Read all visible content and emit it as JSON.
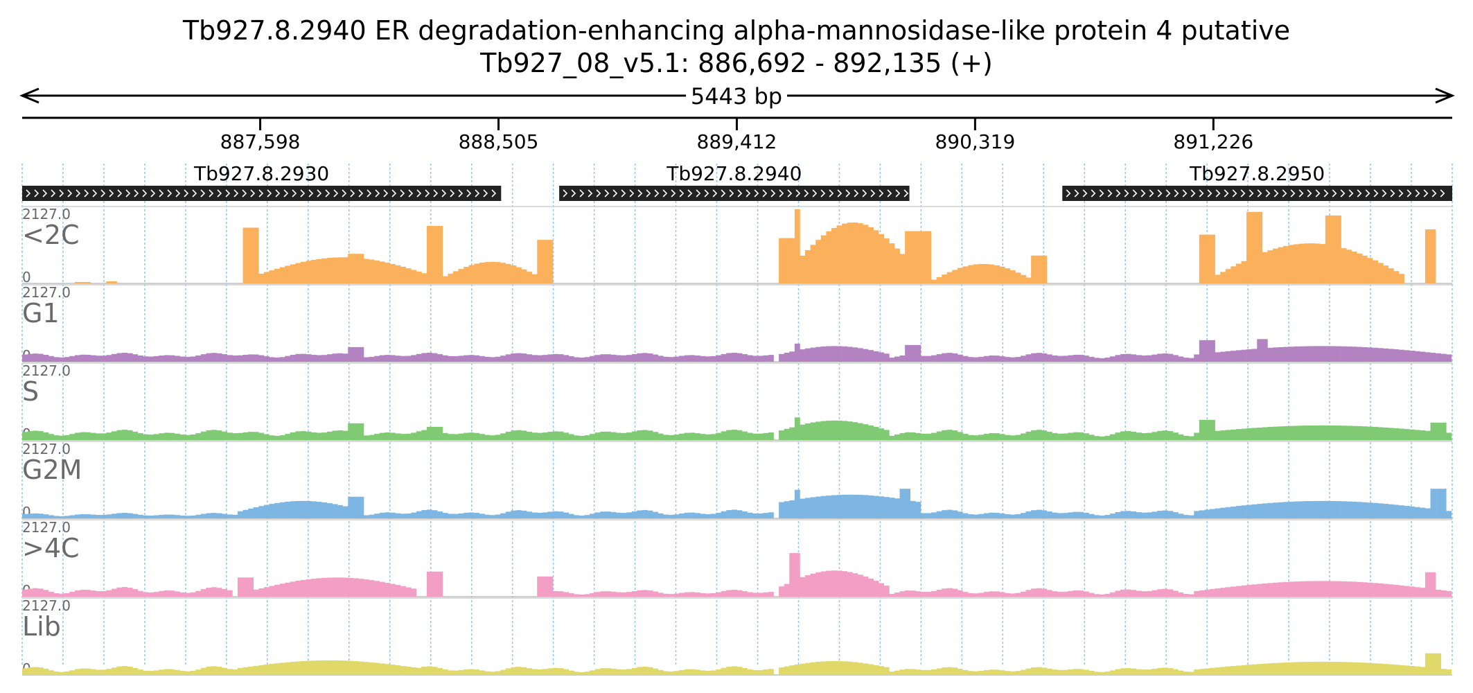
{
  "chart_data": {
    "type": "bar",
    "title": "Tb927.8.2940  ER degradation-enhancing alpha-mannosidase-like protein 4  putative",
    "subtitle": "Tb927_08_v5.1: 886,692 - 892,135 (+)",
    "region": {
      "chrom": "Tb927_08_v5.1",
      "start": 886692,
      "end": 892135,
      "strand": "+",
      "length_label": "5443 bp"
    },
    "axis_ticks": [
      {
        "value": 887598,
        "label": "887,598"
      },
      {
        "value": 888505,
        "label": "888,505"
      },
      {
        "value": 889412,
        "label": "889,412"
      },
      {
        "value": 890319,
        "label": "890,319"
      },
      {
        "value": 891226,
        "label": "891,226"
      }
    ],
    "genes": [
      {
        "name": "Tb927.8.2930",
        "start": 886692,
        "end": 888515,
        "strand": "+"
      },
      {
        "name": "Tb927.8.2940",
        "start": 888736,
        "end": 890069,
        "strand": "+"
      },
      {
        "name": "Tb927.8.2950",
        "start": 890651,
        "end": 892135,
        "strand": "+"
      }
    ],
    "ylim": [
      0,
      2127.0
    ],
    "ymax_label": "2127.0",
    "ymin_label": "0",
    "bin_size_bp": 20,
    "series": [
      {
        "name": "<2C",
        "color": "#fbb15c",
        "segments": [
          {
            "start": 886900,
            "end": 886960,
            "shape": "flat",
            "base": 40
          },
          {
            "start": 887020,
            "end": 887060,
            "shape": "flat",
            "base": 60
          },
          {
            "start": 887530,
            "end": 887590,
            "shape": "flat",
            "base": 1600
          },
          {
            "start": 887590,
            "end": 888240,
            "shape": "arch",
            "base": 250,
            "peak": 750
          },
          {
            "start": 887940,
            "end": 887990,
            "shape": "flat",
            "base": 850
          },
          {
            "start": 888240,
            "end": 888300,
            "shape": "flat",
            "base": 1650
          },
          {
            "start": 888300,
            "end": 888660,
            "shape": "arch",
            "base": 200,
            "peak": 620
          },
          {
            "start": 888660,
            "end": 888720,
            "shape": "flat",
            "base": 1250
          },
          {
            "start": 889580,
            "end": 889640,
            "shape": "flat",
            "base": 1300
          },
          {
            "start": 889630,
            "end": 889650,
            "shape": "flat",
            "base": 2127
          },
          {
            "start": 889650,
            "end": 890060,
            "shape": "arch",
            "base": 700,
            "peak": 1750
          },
          {
            "start": 890060,
            "end": 890160,
            "shape": "flat",
            "base": 1500
          },
          {
            "start": 890160,
            "end": 890540,
            "shape": "arch",
            "base": 100,
            "peak": 560
          },
          {
            "start": 890540,
            "end": 890600,
            "shape": "flat",
            "base": 800
          },
          {
            "start": 891170,
            "end": 891230,
            "shape": "flat",
            "base": 1400
          },
          {
            "start": 891230,
            "end": 891960,
            "shape": "arch",
            "base": 200,
            "peak": 1150
          },
          {
            "start": 891360,
            "end": 891420,
            "shape": "flat",
            "base": 2050
          },
          {
            "start": 891660,
            "end": 891720,
            "shape": "flat",
            "base": 1950
          },
          {
            "start": 892030,
            "end": 892080,
            "shape": "flat",
            "base": 1550
          }
        ]
      },
      {
        "name": "G1",
        "color": "#b283c0",
        "segments": [
          {
            "start": 886692,
            "end": 889550,
            "shape": "wave",
            "base": 120,
            "peak": 260
          },
          {
            "start": 887940,
            "end": 887990,
            "shape": "flat",
            "base": 420
          },
          {
            "start": 889570,
            "end": 890000,
            "shape": "arch",
            "base": 200,
            "peak": 450
          },
          {
            "start": 889630,
            "end": 889660,
            "shape": "flat",
            "base": 520
          },
          {
            "start": 890000,
            "end": 891150,
            "shape": "wave",
            "base": 100,
            "peak": 260
          },
          {
            "start": 890060,
            "end": 890120,
            "shape": "flat",
            "base": 480
          },
          {
            "start": 891150,
            "end": 892135,
            "shape": "arch",
            "base": 200,
            "peak": 450
          },
          {
            "start": 891170,
            "end": 891230,
            "shape": "flat",
            "base": 620
          },
          {
            "start": 891400,
            "end": 891440,
            "shape": "flat",
            "base": 650
          }
        ]
      },
      {
        "name": "S",
        "color": "#7fca73",
        "segments": [
          {
            "start": 886692,
            "end": 889550,
            "shape": "wave",
            "base": 120,
            "peak": 300
          },
          {
            "start": 887940,
            "end": 887990,
            "shape": "flat",
            "base": 480
          },
          {
            "start": 888240,
            "end": 888300,
            "shape": "flat",
            "base": 380
          },
          {
            "start": 889570,
            "end": 890000,
            "shape": "arch",
            "base": 250,
            "peak": 560
          },
          {
            "start": 889630,
            "end": 889660,
            "shape": "flat",
            "base": 650
          },
          {
            "start": 890000,
            "end": 891150,
            "shape": "wave",
            "base": 100,
            "peak": 300
          },
          {
            "start": 891150,
            "end": 892135,
            "shape": "arch",
            "base": 200,
            "peak": 420
          },
          {
            "start": 891170,
            "end": 891230,
            "shape": "flat",
            "base": 580
          },
          {
            "start": 892060,
            "end": 892110,
            "shape": "flat",
            "base": 500
          }
        ]
      },
      {
        "name": "G2M",
        "color": "#7db6e2",
        "segments": [
          {
            "start": 886692,
            "end": 887520,
            "shape": "wave",
            "base": 60,
            "peak": 160
          },
          {
            "start": 887520,
            "end": 888000,
            "shape": "arch",
            "base": 200,
            "peak": 500
          },
          {
            "start": 887940,
            "end": 887990,
            "shape": "flat",
            "base": 620
          },
          {
            "start": 888000,
            "end": 889550,
            "shape": "wave",
            "base": 80,
            "peak": 250
          },
          {
            "start": 889570,
            "end": 890120,
            "shape": "arch",
            "base": 450,
            "peak": 680
          },
          {
            "start": 889630,
            "end": 889660,
            "shape": "flat",
            "base": 820
          },
          {
            "start": 890040,
            "end": 890080,
            "shape": "flat",
            "base": 850
          },
          {
            "start": 890120,
            "end": 891150,
            "shape": "wave",
            "base": 80,
            "peak": 250
          },
          {
            "start": 891150,
            "end": 892135,
            "shape": "arch",
            "base": 200,
            "peak": 500
          },
          {
            "start": 892060,
            "end": 892110,
            "shape": "flat",
            "base": 850
          }
        ]
      },
      {
        "name": ">4C",
        "color": "#f39ec4",
        "segments": [
          {
            "start": 886692,
            "end": 887500,
            "shape": "wave",
            "base": 80,
            "peak": 280
          },
          {
            "start": 887520,
            "end": 887580,
            "shape": "flat",
            "base": 550
          },
          {
            "start": 887580,
            "end": 888200,
            "shape": "arch",
            "base": 200,
            "peak": 550
          },
          {
            "start": 888240,
            "end": 888300,
            "shape": "flat",
            "base": 720
          },
          {
            "start": 888660,
            "end": 888720,
            "shape": "flat",
            "base": 580
          },
          {
            "start": 888720,
            "end": 889560,
            "shape": "wave",
            "base": 60,
            "peak": 200
          },
          {
            "start": 889570,
            "end": 890000,
            "shape": "arch",
            "base": 250,
            "peak": 750
          },
          {
            "start": 889620,
            "end": 889650,
            "shape": "flat",
            "base": 1250
          },
          {
            "start": 890000,
            "end": 891150,
            "shape": "wave",
            "base": 60,
            "peak": 250
          },
          {
            "start": 891150,
            "end": 892135,
            "shape": "arch",
            "base": 150,
            "peak": 450
          },
          {
            "start": 892030,
            "end": 892080,
            "shape": "flat",
            "base": 700
          }
        ]
      },
      {
        "name": "Lib",
        "color": "#e0d868",
        "segments": [
          {
            "start": 886692,
            "end": 887520,
            "shape": "wave",
            "base": 80,
            "peak": 260
          },
          {
            "start": 887520,
            "end": 888200,
            "shape": "arch",
            "base": 200,
            "peak": 420
          },
          {
            "start": 888200,
            "end": 889560,
            "shape": "wave",
            "base": 80,
            "peak": 250
          },
          {
            "start": 889570,
            "end": 890000,
            "shape": "arch",
            "base": 200,
            "peak": 400
          },
          {
            "start": 890000,
            "end": 891150,
            "shape": "wave",
            "base": 80,
            "peak": 230
          },
          {
            "start": 891150,
            "end": 892135,
            "shape": "arch",
            "base": 150,
            "peak": 380
          },
          {
            "start": 892040,
            "end": 892100,
            "shape": "flat",
            "base": 620
          }
        ]
      }
    ]
  }
}
